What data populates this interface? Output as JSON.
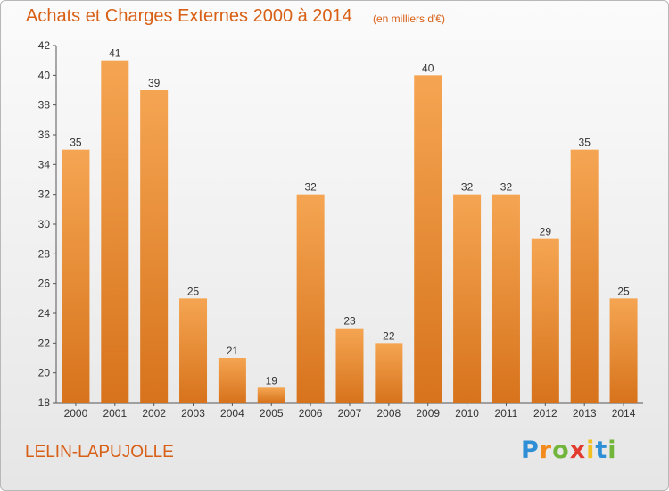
{
  "title": "Achats et Charges Externes 2000 à 2014",
  "subtitle": "(en milliers d'€)",
  "commune": "LELIN-LAPUJOLLE",
  "logo": {
    "p": "P",
    "r": "r",
    "o": "o",
    "x": "x",
    "i1": "i",
    "t": "t",
    "i2": "i"
  },
  "colors": {
    "accent": "#d85f16",
    "bar_top": "#f5a552",
    "bar_bottom": "#d7731c"
  },
  "chart_data": {
    "type": "bar",
    "categories": [
      "2000",
      "2001",
      "2002",
      "2003",
      "2004",
      "2005",
      "2006",
      "2007",
      "2008",
      "2009",
      "2010",
      "2011",
      "2012",
      "2013",
      "2014"
    ],
    "values": [
      35,
      41,
      39,
      25,
      21,
      19,
      32,
      23,
      22,
      40,
      32,
      32,
      29,
      35,
      25
    ],
    "yticks": [
      18,
      20,
      22,
      24,
      26,
      28,
      30,
      32,
      34,
      36,
      38,
      40,
      42
    ],
    "ylim": [
      18,
      42
    ],
    "xlabel": "",
    "ylabel": "",
    "grid": false
  }
}
